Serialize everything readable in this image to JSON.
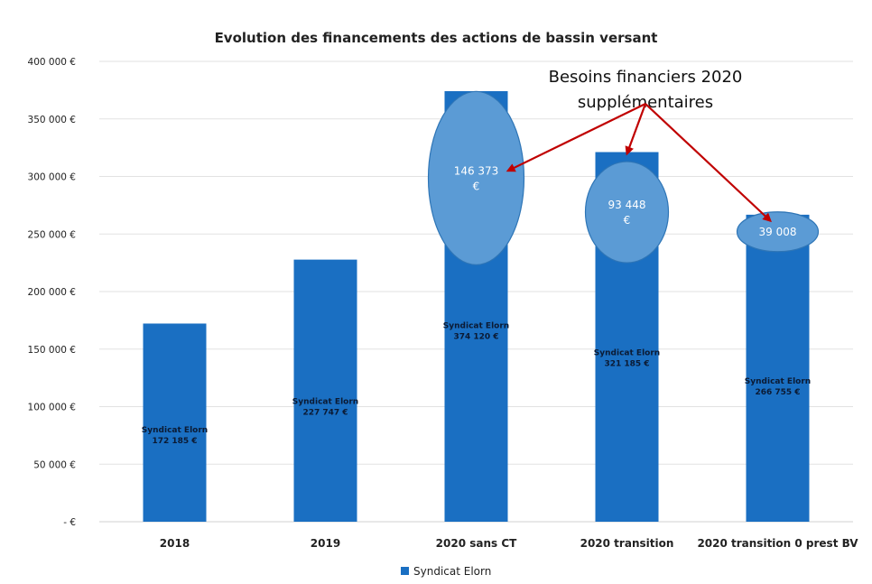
{
  "chart_data": {
    "type": "bar",
    "title": "Evolution des financements des actions de bassin versant",
    "categories": [
      "2018",
      "2019",
      "2020 sans CT",
      "2020 transition",
      "2020 transition 0 prest BV"
    ],
    "series": [
      {
        "name": "Syndicat Elorn",
        "values": [
          172185,
          227747,
          374120,
          321185,
          266755
        ],
        "data_labels": [
          [
            "Syndicat Elorn",
            "172 185 €"
          ],
          [
            "Syndicat Elorn",
            "227 747 €"
          ],
          [
            "Syndicat Elorn",
            "374 120 €"
          ],
          [
            "Syndicat Elorn",
            "321 185 €"
          ],
          [
            "Syndicat Elorn",
            "266 755 €"
          ]
        ]
      }
    ],
    "ylim": [
      0,
      400000
    ],
    "yticks": [
      0,
      50000,
      100000,
      150000,
      200000,
      250000,
      300000,
      350000,
      400000
    ],
    "ytick_labels": [
      "- €",
      "50 000 €",
      "100 000 €",
      "150 000 €",
      "200 000 €",
      "250 000 €",
      "300 000 €",
      "350 000 €",
      "400 000 €"
    ],
    "grid": true,
    "legend_position": "bottom",
    "bar_color": "#1a6fc2",
    "bubble_color": "#5b9bd5",
    "arrow_color": "#c00000",
    "annotation": {
      "lines": [
        "Besoins financiers 2020",
        "supplémentaires"
      ]
    },
    "extra_needs": [
      {
        "category": "2020 sans CT",
        "value": 146373,
        "lines": [
          "146 373",
          "€"
        ]
      },
      {
        "category": "2020 transition",
        "value": 93448,
        "lines": [
          "93 448",
          "€"
        ]
      },
      {
        "category": "2020 transition 0 prest BV",
        "value": 39008,
        "lines": [
          "39 008"
        ]
      }
    ]
  }
}
